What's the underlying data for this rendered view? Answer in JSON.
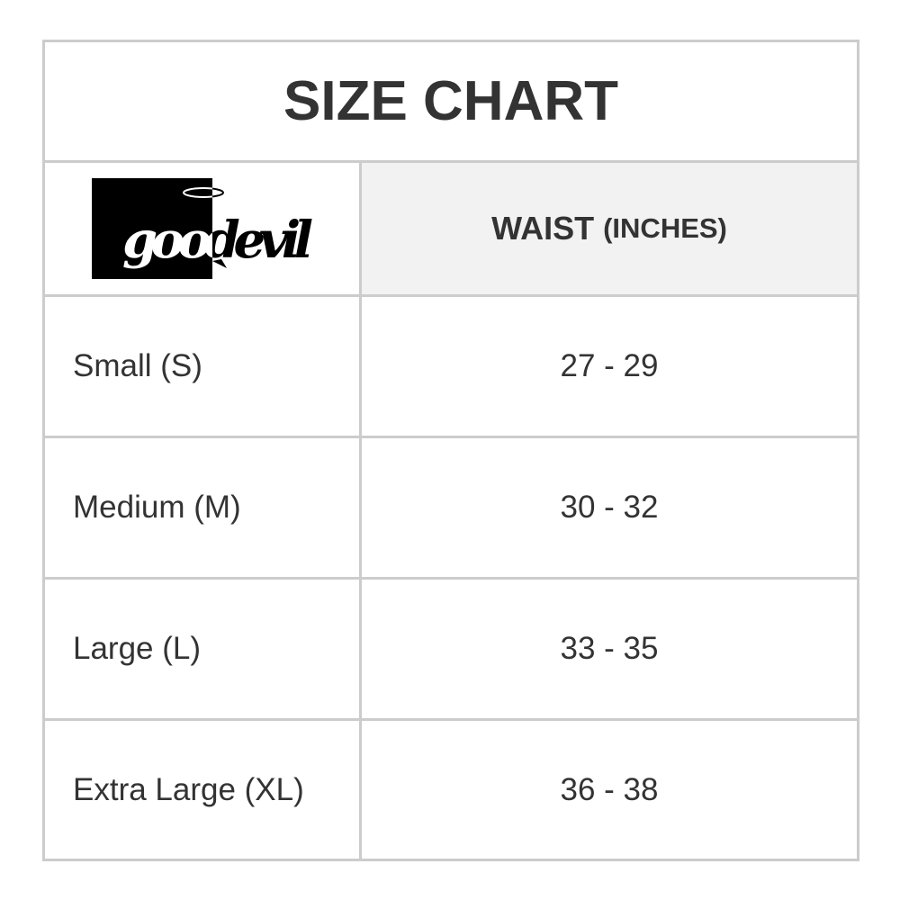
{
  "title": "SIZE CHART",
  "logo": {
    "text": "goodevil"
  },
  "header": {
    "col2_main": "WAIST",
    "col2_unit": "(INCHES)"
  },
  "rows": [
    {
      "size": "Small (S)",
      "waist": "27 - 29"
    },
    {
      "size": "Medium (M)",
      "waist": "30 - 32"
    },
    {
      "size": "Large (L)",
      "waist": "33 - 35"
    },
    {
      "size": "Extra Large (XL)",
      "waist": "36 - 38"
    }
  ]
}
